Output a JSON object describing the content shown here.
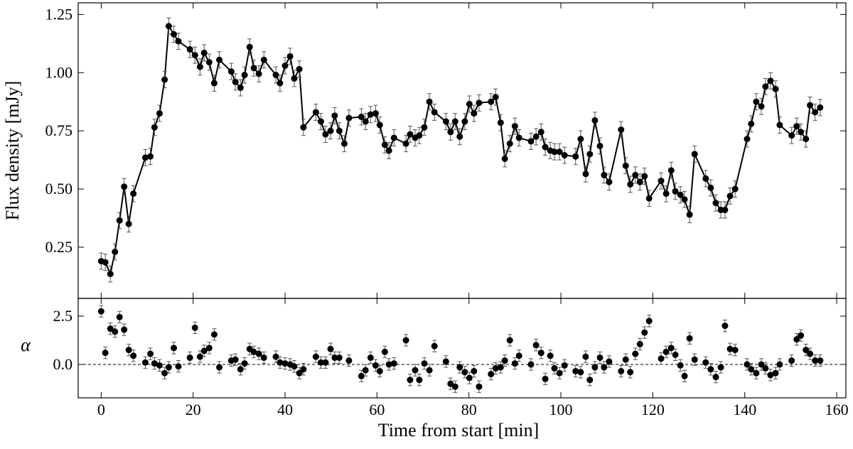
{
  "chart_data": [
    {
      "type": "line",
      "ylabel": "Flux density [mJy]",
      "color": "#000000",
      "yerr": 0.035,
      "xlim": [
        -5,
        162
      ],
      "xticks": [
        0,
        20,
        40,
        60,
        80,
        100,
        120,
        140,
        160
      ],
      "ylim": [
        0.03,
        1.3
      ],
      "yticks": [
        0.25,
        {
          "value": 0.5,
          "label": "0.50"
        },
        0.75,
        {
          "value": 1.0,
          "label": "1.00"
        },
        1.25
      ],
      "x": [
        0,
        0.9,
        2,
        3,
        4,
        5,
        6,
        7,
        9.6,
        10.7,
        11.6,
        12.7,
        13.8,
        14.7,
        15.8,
        16.8,
        19.3,
        20.4,
        21.5,
        22.4,
        23.5,
        24.6,
        25.7,
        28.3,
        29.2,
        30.3,
        31.2,
        32.3,
        33.2,
        34.3,
        35.4,
        38,
        38.9,
        40,
        41.1,
        42,
        43.1,
        44,
        46.7,
        47.8,
        48.8,
        49.9,
        50.8,
        51.8,
        52.9,
        53.9,
        56.6,
        57.5,
        58.6,
        59.7,
        60.6,
        61.7,
        62.6,
        63.7,
        66.3,
        67.2,
        68.3,
        69.2,
        70.3,
        71.4,
        72.5,
        75,
        76,
        77,
        78,
        79.1,
        80.1,
        81.1,
        82.2,
        84.8,
        85.8,
        86.9,
        87.8,
        88.9,
        90,
        90.9,
        93.5,
        94.6,
        95.7,
        96.6,
        97.7,
        98.6,
        99.7,
        100.8,
        103.2,
        104.3,
        105.4,
        106.3,
        107.4,
        108.5,
        109.4,
        110.5,
        113.1,
        114.1,
        115.1,
        116.2,
        117.2,
        118.2,
        119.2,
        121.8,
        122.9,
        124,
        124.9,
        126,
        126.9,
        128,
        129.1,
        131.5,
        132.6,
        133.7,
        134.8,
        135.7,
        136.8,
        137.9,
        140.5,
        141.4,
        142.5,
        143.6,
        144.5,
        145.6,
        146.7,
        147.6,
        150.2,
        151.3,
        152.2,
        153.3,
        154.2,
        155.3,
        156.4
      ],
      "series": [
        {
          "values": [
            0.19,
            0.185,
            0.135,
            0.23,
            0.365,
            0.51,
            0.35,
            0.48,
            0.635,
            0.64,
            0.765,
            0.825,
            0.97,
            1.2,
            1.165,
            1.135,
            1.1,
            1.075,
            1.025,
            1.085,
            1.045,
            0.955,
            1.055,
            1.005,
            0.96,
            0.935,
            0.99,
            1.11,
            1.02,
            0.995,
            1.055,
            0.99,
            0.955,
            1.03,
            1.07,
            0.975,
            1.015,
            0.765,
            0.83,
            0.79,
            0.735,
            0.75,
            0.815,
            0.75,
            0.695,
            0.805,
            0.81,
            0.79,
            0.82,
            0.825,
            0.775,
            0.69,
            0.665,
            0.72,
            0.695,
            0.735,
            0.72,
            0.73,
            0.765,
            0.875,
            0.83,
            0.79,
            0.745,
            0.79,
            0.725,
            0.79,
            0.865,
            0.825,
            0.87,
            0.875,
            0.895,
            0.785,
            0.63,
            0.695,
            0.77,
            0.72,
            0.705,
            0.725,
            0.745,
            0.68,
            0.665,
            0.66,
            0.66,
            0.645,
            0.64,
            0.715,
            0.565,
            0.65,
            0.795,
            0.685,
            0.56,
            0.53,
            0.755,
            0.6,
            0.52,
            0.56,
            0.53,
            0.555,
            0.46,
            0.535,
            0.48,
            0.58,
            0.49,
            0.475,
            0.455,
            0.39,
            0.65,
            0.545,
            0.505,
            0.44,
            0.41,
            0.41,
            0.47,
            0.5,
            0.715,
            0.78,
            0.875,
            0.855,
            0.94,
            0.965,
            0.93,
            0.775,
            0.73,
            0.77,
            0.745,
            0.715,
            0.86,
            0.83,
            0.85
          ]
        }
      ]
    },
    {
      "type": "scatter",
      "ylabel": "α",
      "xlabel": "Time from start [min]",
      "color": "#000000",
      "yerr": 0.3,
      "hline": 0,
      "xlim": [
        -5,
        162
      ],
      "xticks": [
        0,
        20,
        40,
        60,
        80,
        100,
        120,
        140,
        160
      ],
      "ylim": [
        -1.73,
        3.42
      ],
      "yticks": [
        {
          "value": 0,
          "label": "0.0"
        },
        2.5
      ],
      "x": [
        0,
        0.9,
        2,
        3,
        4,
        5,
        6,
        7,
        9.6,
        10.7,
        11.6,
        12.7,
        13.8,
        14.7,
        15.8,
        16.8,
        19.3,
        20.4,
        21.5,
        22.4,
        23.5,
        24.6,
        25.7,
        28.3,
        29.2,
        30.3,
        31.2,
        32.3,
        33.2,
        34.3,
        35.4,
        38,
        38.9,
        40,
        41.1,
        42,
        43.1,
        44,
        46.7,
        47.8,
        48.8,
        49.9,
        50.8,
        51.8,
        53.9,
        56.6,
        57.5,
        58.6,
        59.7,
        60.6,
        61.7,
        62.6,
        63.7,
        66.3,
        67.2,
        68.3,
        69.2,
        70.3,
        71.4,
        72.5,
        75,
        76,
        77,
        78,
        79.1,
        80.1,
        81.1,
        82.2,
        84.8,
        85.8,
        86.9,
        87.8,
        88.9,
        90,
        90.9,
        93.5,
        94.6,
        95.7,
        96.6,
        97.7,
        98.6,
        99.7,
        100.8,
        103.2,
        104.3,
        105.4,
        106.3,
        107.4,
        108.5,
        109.4,
        110.5,
        113.1,
        114.1,
        115.1,
        116.2,
        117.2,
        118.2,
        119.2,
        121.8,
        122.9,
        124,
        124.9,
        126,
        126.9,
        128,
        129.1,
        131.5,
        132.6,
        133.7,
        134.8,
        135.7,
        136.8,
        137.9,
        140.5,
        141.4,
        142.5,
        143.6,
        144.5,
        145.6,
        146.7,
        147.6,
        150.2,
        151.3,
        152.2,
        153.3,
        154.2,
        155.3,
        156.4
      ],
      "series": [
        {
          "values": [
            2.75,
            0.6,
            1.85,
            1.7,
            2.45,
            1.8,
            0.75,
            0.45,
            0.1,
            0.55,
            0.05,
            -0.05,
            -0.45,
            -0.15,
            0.85,
            -0.1,
            0.35,
            1.9,
            0.4,
            0.7,
            0.85,
            1.55,
            -0.15,
            0.2,
            0.25,
            -0.25,
            0.05,
            0.8,
            0.65,
            0.55,
            0.35,
            0.4,
            0.1,
            0.05,
            0,
            -0.1,
            -0.45,
            -0.25,
            0.4,
            0.1,
            0.1,
            0.8,
            0.35,
            0.35,
            0.2,
            -0.6,
            -0.3,
            0.35,
            -0.05,
            -0.35,
            0.65,
            0,
            0.05,
            1.25,
            -0.8,
            -0.3,
            -0.8,
            0.05,
            -0.3,
            0.95,
            0.15,
            -1.0,
            -1.15,
            -0.15,
            -0.4,
            -0.7,
            -0.35,
            -1.15,
            -0.5,
            -0.2,
            -0.15,
            0.2,
            1.25,
            0.05,
            0.45,
            0,
            1.0,
            0.6,
            -0.75,
            0.45,
            -0.2,
            -0.45,
            -0.05,
            -0.35,
            -0.4,
            0.4,
            -0.8,
            -0.15,
            0.35,
            -0.15,
            0.15,
            -0.35,
            0.25,
            -0.4,
            0.55,
            1.05,
            1.65,
            2.25,
            0.3,
            0.65,
            0.85,
            0.5,
            -0.05,
            -0.6,
            1.35,
            0.25,
            0.1,
            -0.25,
            -0.65,
            -0.15,
            2.0,
            0.8,
            0.75,
            0,
            -0.25,
            -0.45,
            0,
            -0.2,
            -0.55,
            -0.45,
            0,
            0.2,
            1.3,
            1.5,
            0.75,
            0.55,
            0.2,
            0.2
          ]
        }
      ]
    }
  ]
}
